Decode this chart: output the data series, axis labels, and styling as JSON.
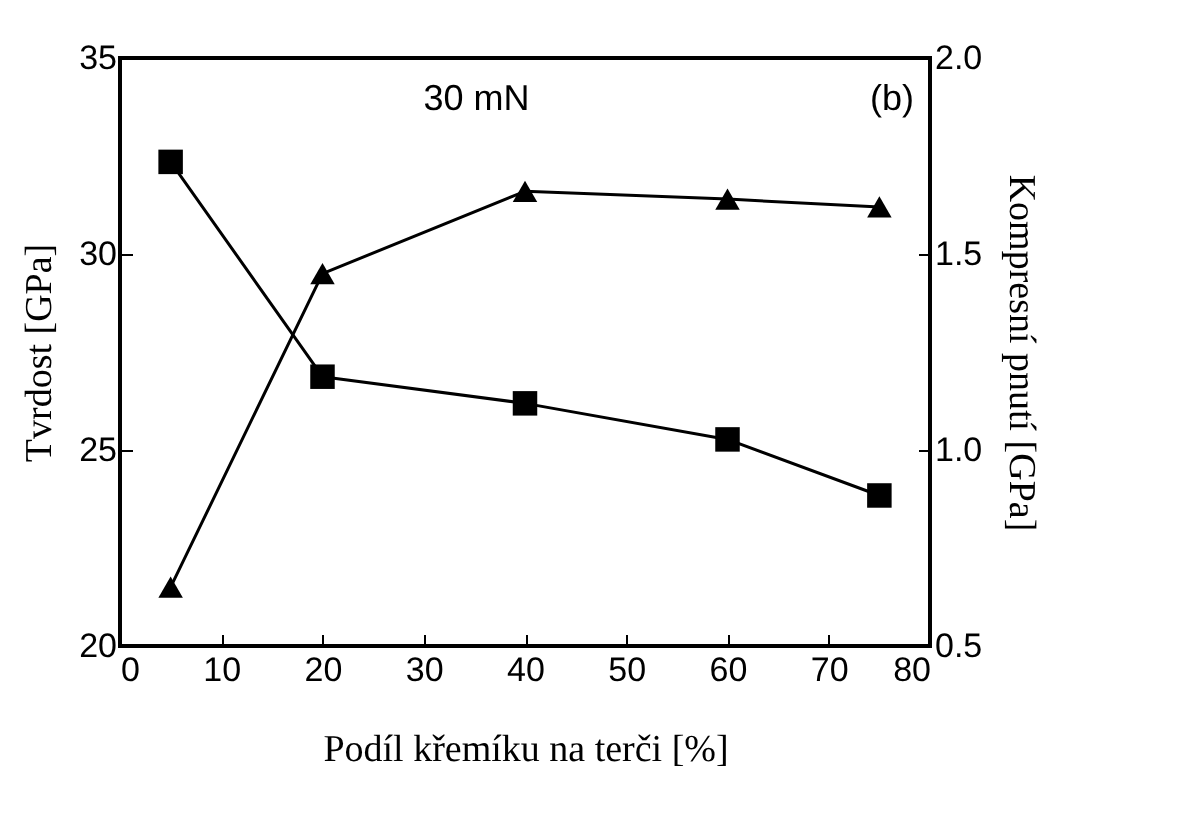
{
  "chart_data": {
    "type": "line",
    "xlabel": "Podíl křemíku na terči [%]",
    "ylabel": "Tvrdost [GPa]",
    "y2label": "Kompresní pnutí [GPa]",
    "annotations": [
      "30 mN",
      "(b)"
    ],
    "x": [
      5,
      20,
      40,
      60,
      75
    ],
    "series": [
      {
        "color": "#000000",
        "marker": "square",
        "values": [
          32.35,
          26.87,
          26.19,
          25.27,
          23.84
        ]
      },
      {
        "color": "#000000",
        "marker": "triangle",
        "axis": "y2",
        "values": [
          0.65,
          1.45,
          1.66,
          1.64,
          1.62
        ]
      }
    ],
    "xlim": [
      0,
      80
    ],
    "xticks": [
      0,
      10,
      20,
      30,
      40,
      50,
      60,
      70,
      80
    ],
    "ylim": [
      20,
      35
    ],
    "yticks": [
      20,
      25,
      30,
      35
    ],
    "y2lim": [
      0.5,
      2.0
    ],
    "y2ticks": [
      {
        "value": 0.5,
        "label": "0.5"
      },
      {
        "value": 1.0,
        "label": "1.0"
      },
      {
        "value": 1.5,
        "label": "1.5"
      },
      {
        "value": 2.0,
        "label": "2.0"
      }
    ],
    "grid": false,
    "line_style": "solid"
  }
}
